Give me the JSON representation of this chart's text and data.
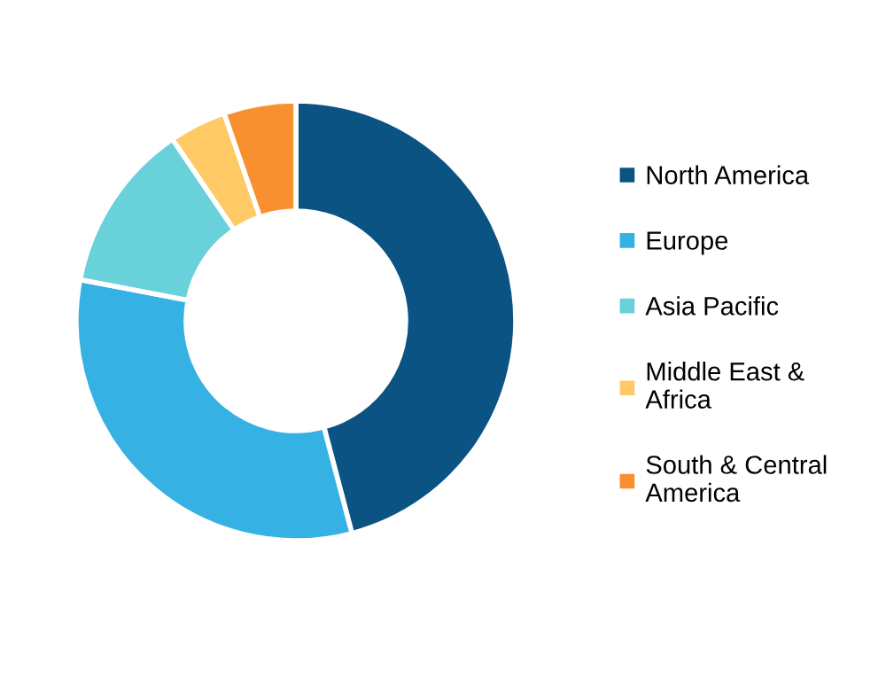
{
  "chart_data": {
    "type": "donut",
    "categories": [
      "North America",
      "Europe",
      "Asia Pacific",
      "Middle East & Africa",
      "South & Central America"
    ],
    "values": [
      45.9,
      32.1,
      12.5,
      4.2,
      5.3
    ],
    "colors": [
      "#0a5383",
      "#36b1e3",
      "#68d1d9",
      "#ffca66",
      "#f89030"
    ],
    "legend": "right"
  }
}
